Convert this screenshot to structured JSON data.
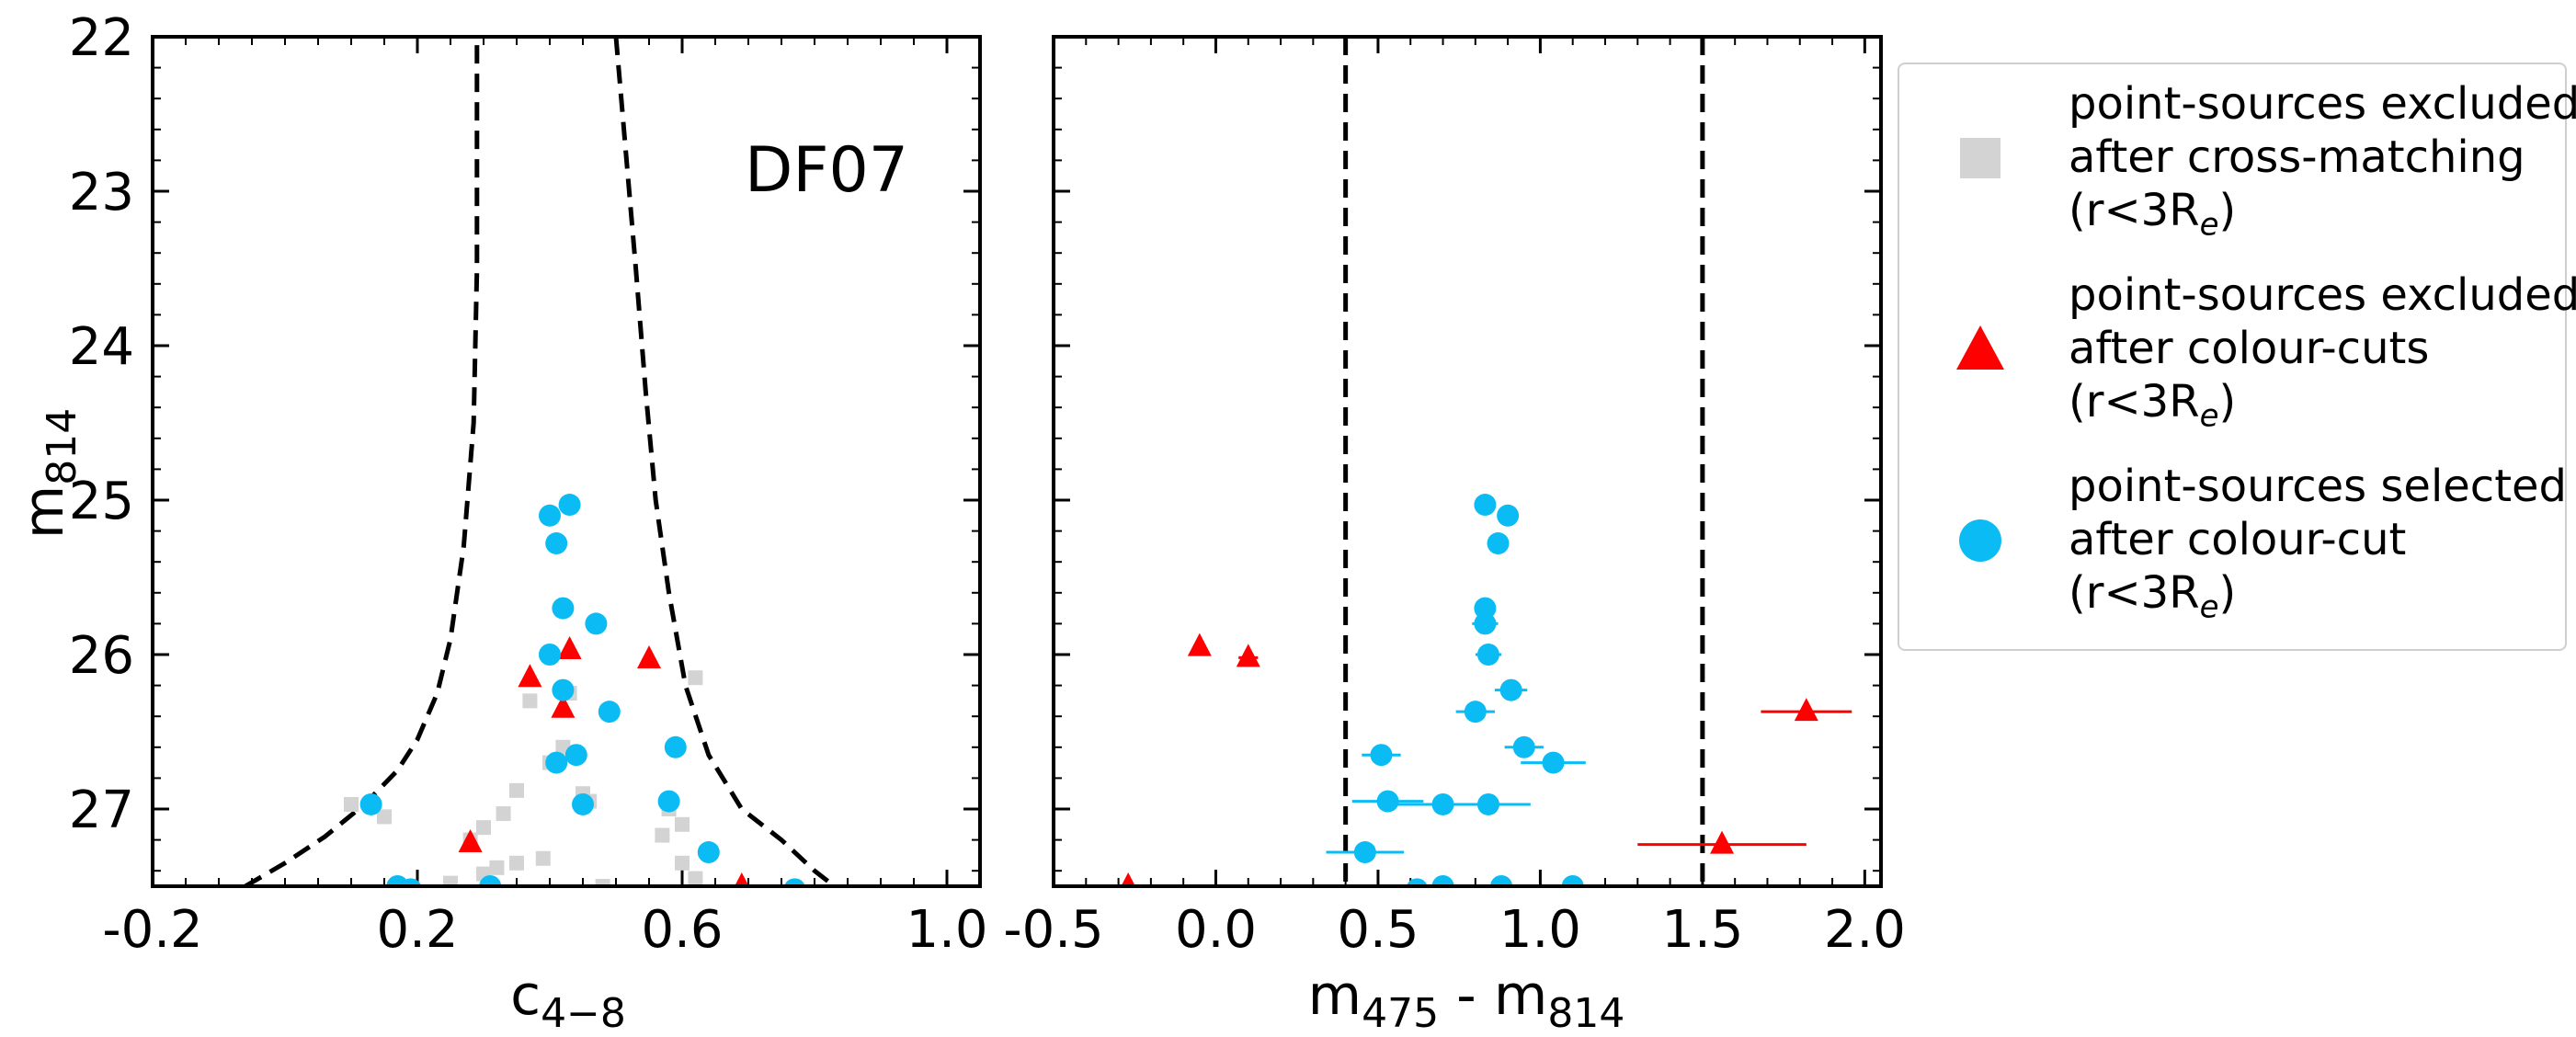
{
  "chart_data": [
    {
      "type": "scatter",
      "panel": "left",
      "panel_label": "DF07",
      "xlabel": "c",
      "xlabel_sub": "4−8",
      "ylabel": "m",
      "ylabel_sub": "814",
      "xlim": [
        -0.2,
        1.05
      ],
      "ylim": [
        27.5,
        22.0
      ],
      "xticks": [
        -0.2,
        0.2,
        0.6,
        1.0
      ],
      "xtick_labels": [
        "-0.2",
        "0.2",
        "0.6",
        "1.0"
      ],
      "yticks": [
        22,
        23,
        24,
        25,
        26,
        27
      ],
      "ytick_labels": [
        "22",
        "23",
        "24",
        "25",
        "26",
        "27"
      ],
      "boundaries": [
        {
          "name": "left-boundary",
          "points": [
            [
              -0.06,
              27.5
            ],
            [
              0.0,
              27.35
            ],
            [
              0.06,
              27.18
            ],
            [
              0.12,
              26.97
            ],
            [
              0.17,
              26.75
            ],
            [
              0.2,
              26.55
            ],
            [
              0.23,
              26.25
            ],
            [
              0.25,
              25.9
            ],
            [
              0.27,
              25.3
            ],
            [
              0.285,
              24.5
            ],
            [
              0.29,
              23.5
            ],
            [
              0.29,
              22.0
            ]
          ]
        },
        {
          "name": "right-boundary",
          "points": [
            [
              0.5,
              22.0
            ],
            [
              0.51,
              22.5
            ],
            [
              0.52,
              23.0
            ],
            [
              0.53,
              23.5
            ],
            [
              0.545,
              24.3
            ],
            [
              0.56,
              25.0
            ],
            [
              0.58,
              25.6
            ],
            [
              0.605,
              26.2
            ],
            [
              0.64,
              26.65
            ],
            [
              0.69,
              27.0
            ],
            [
              0.75,
              27.2
            ],
            [
              0.8,
              27.4
            ],
            [
              0.83,
              27.5
            ]
          ]
        }
      ],
      "series": [
        {
          "name": "point-sources excluded after cross-matching",
          "marker": "square",
          "color": "#d3d3d3",
          "points": [
            [
              0.1,
              26.97
            ],
            [
              0.15,
              27.05
            ],
            [
              0.28,
              27.2
            ],
            [
              0.3,
              27.12
            ],
            [
              0.33,
              27.03
            ],
            [
              0.35,
              26.88
            ],
            [
              0.37,
              26.3
            ],
            [
              0.4,
              26.7
            ],
            [
              0.42,
              26.6
            ],
            [
              0.43,
              26.25
            ],
            [
              0.45,
              26.9
            ],
            [
              0.46,
              26.95
            ],
            [
              0.35,
              27.35
            ],
            [
              0.3,
              27.42
            ],
            [
              0.32,
              27.38
            ],
            [
              0.57,
              27.17
            ],
            [
              0.6,
              27.35
            ],
            [
              0.62,
              26.15
            ],
            [
              0.62,
              27.45
            ],
            [
              0.6,
              27.1
            ],
            [
              0.39,
              27.32
            ],
            [
              0.25,
              27.48
            ],
            [
              0.58,
              27.0
            ],
            [
              0.48,
              27.5
            ]
          ]
        },
        {
          "name": "point-sources excluded after colour-cuts",
          "marker": "triangle",
          "color": "#ff0000",
          "points": [
            [
              0.37,
              26.15
            ],
            [
              0.43,
              25.97
            ],
            [
              0.42,
              26.35
            ],
            [
              0.55,
              26.03
            ],
            [
              0.28,
              27.22
            ],
            [
              0.69,
              27.5
            ]
          ]
        },
        {
          "name": "point-sources selected after colour-cut",
          "marker": "circle",
          "color": "#0bbcf4",
          "points": [
            [
              0.43,
              25.03
            ],
            [
              0.4,
              25.1
            ],
            [
              0.41,
              25.28
            ],
            [
              0.42,
              25.7
            ],
            [
              0.47,
              25.8
            ],
            [
              0.4,
              26.0
            ],
            [
              0.42,
              26.23
            ],
            [
              0.49,
              26.37
            ],
            [
              0.44,
              26.65
            ],
            [
              0.41,
              26.7
            ],
            [
              0.59,
              26.6
            ],
            [
              0.45,
              26.97
            ],
            [
              0.58,
              26.95
            ],
            [
              0.13,
              26.97
            ],
            [
              0.64,
              27.28
            ],
            [
              0.19,
              27.52
            ],
            [
              0.17,
              27.5
            ],
            [
              0.31,
              27.5
            ],
            [
              0.77,
              27.52
            ]
          ]
        }
      ]
    },
    {
      "type": "scatter",
      "panel": "right",
      "xlabel": "m",
      "xlabel_sub": "475",
      "xlabel_mid": " - m",
      "xlabel_sub2": "814",
      "xlim": [
        -0.5,
        2.05
      ],
      "ylim": [
        27.5,
        22.0
      ],
      "xticks": [
        -0.5,
        0.0,
        0.5,
        1.0,
        1.5,
        2.0
      ],
      "xtick_labels": [
        "-0.5",
        "0.0",
        "0.5",
        "1.0",
        "1.5",
        "2.0"
      ],
      "yticks": [
        22,
        23,
        24,
        25,
        26,
        27
      ],
      "vlines": [
        0.4,
        1.5
      ],
      "series": [
        {
          "name": "point-sources excluded after colour-cuts",
          "marker": "triangle",
          "color": "#ff0000",
          "points": [
            [
              -0.05,
              25.95,
              0.02
            ],
            [
              0.1,
              26.02,
              0.03
            ],
            [
              1.82,
              26.37,
              0.14
            ],
            [
              1.56,
              27.23,
              0.26
            ],
            [
              -0.27,
              27.5,
              0.1
            ]
          ]
        },
        {
          "name": "point-sources selected after colour-cut",
          "marker": "circle",
          "color": "#0bbcf4",
          "points": [
            [
              0.83,
              25.03,
              0.02
            ],
            [
              0.9,
              25.1,
              0.02
            ],
            [
              0.87,
              25.28,
              0.02
            ],
            [
              0.83,
              25.7,
              0.02
            ],
            [
              0.83,
              25.8,
              0.04
            ],
            [
              0.84,
              26.0,
              0.04
            ],
            [
              0.91,
              26.23,
              0.05
            ],
            [
              0.8,
              26.37,
              0.06
            ],
            [
              0.95,
              26.6,
              0.06
            ],
            [
              1.04,
              26.7,
              0.1
            ],
            [
              0.51,
              26.65,
              0.06
            ],
            [
              0.53,
              26.95,
              0.11
            ],
            [
              0.7,
              26.97,
              0.14
            ],
            [
              0.84,
              26.97,
              0.13
            ],
            [
              0.46,
              27.28,
              0.12
            ],
            [
              0.7,
              27.5,
              0.08
            ],
            [
              0.88,
              27.5,
              0.05
            ],
            [
              1.1,
              27.5,
              0.05
            ],
            [
              0.62,
              27.52,
              0.04
            ]
          ]
        }
      ]
    }
  ],
  "legend": {
    "entries": [
      {
        "marker": "square",
        "color": "#d3d3d3",
        "line1": "point-sources excluded",
        "line2": "after cross-matching",
        "line3_pre": "(r<3R",
        "line3_sub": "e",
        "line3_post": ")"
      },
      {
        "marker": "triangle",
        "color": "#ff0000",
        "line1": "point-sources excluded",
        "line2": "after colour-cuts",
        "line3_pre": "(r<3R",
        "line3_sub": "e",
        "line3_post": ")"
      },
      {
        "marker": "circle",
        "color": "#0bbcf4",
        "line1": "point-sources selected",
        "line2": "after colour-cut",
        "line3_pre": "(r<3R",
        "line3_sub": "e",
        "line3_post": ")"
      }
    ]
  }
}
